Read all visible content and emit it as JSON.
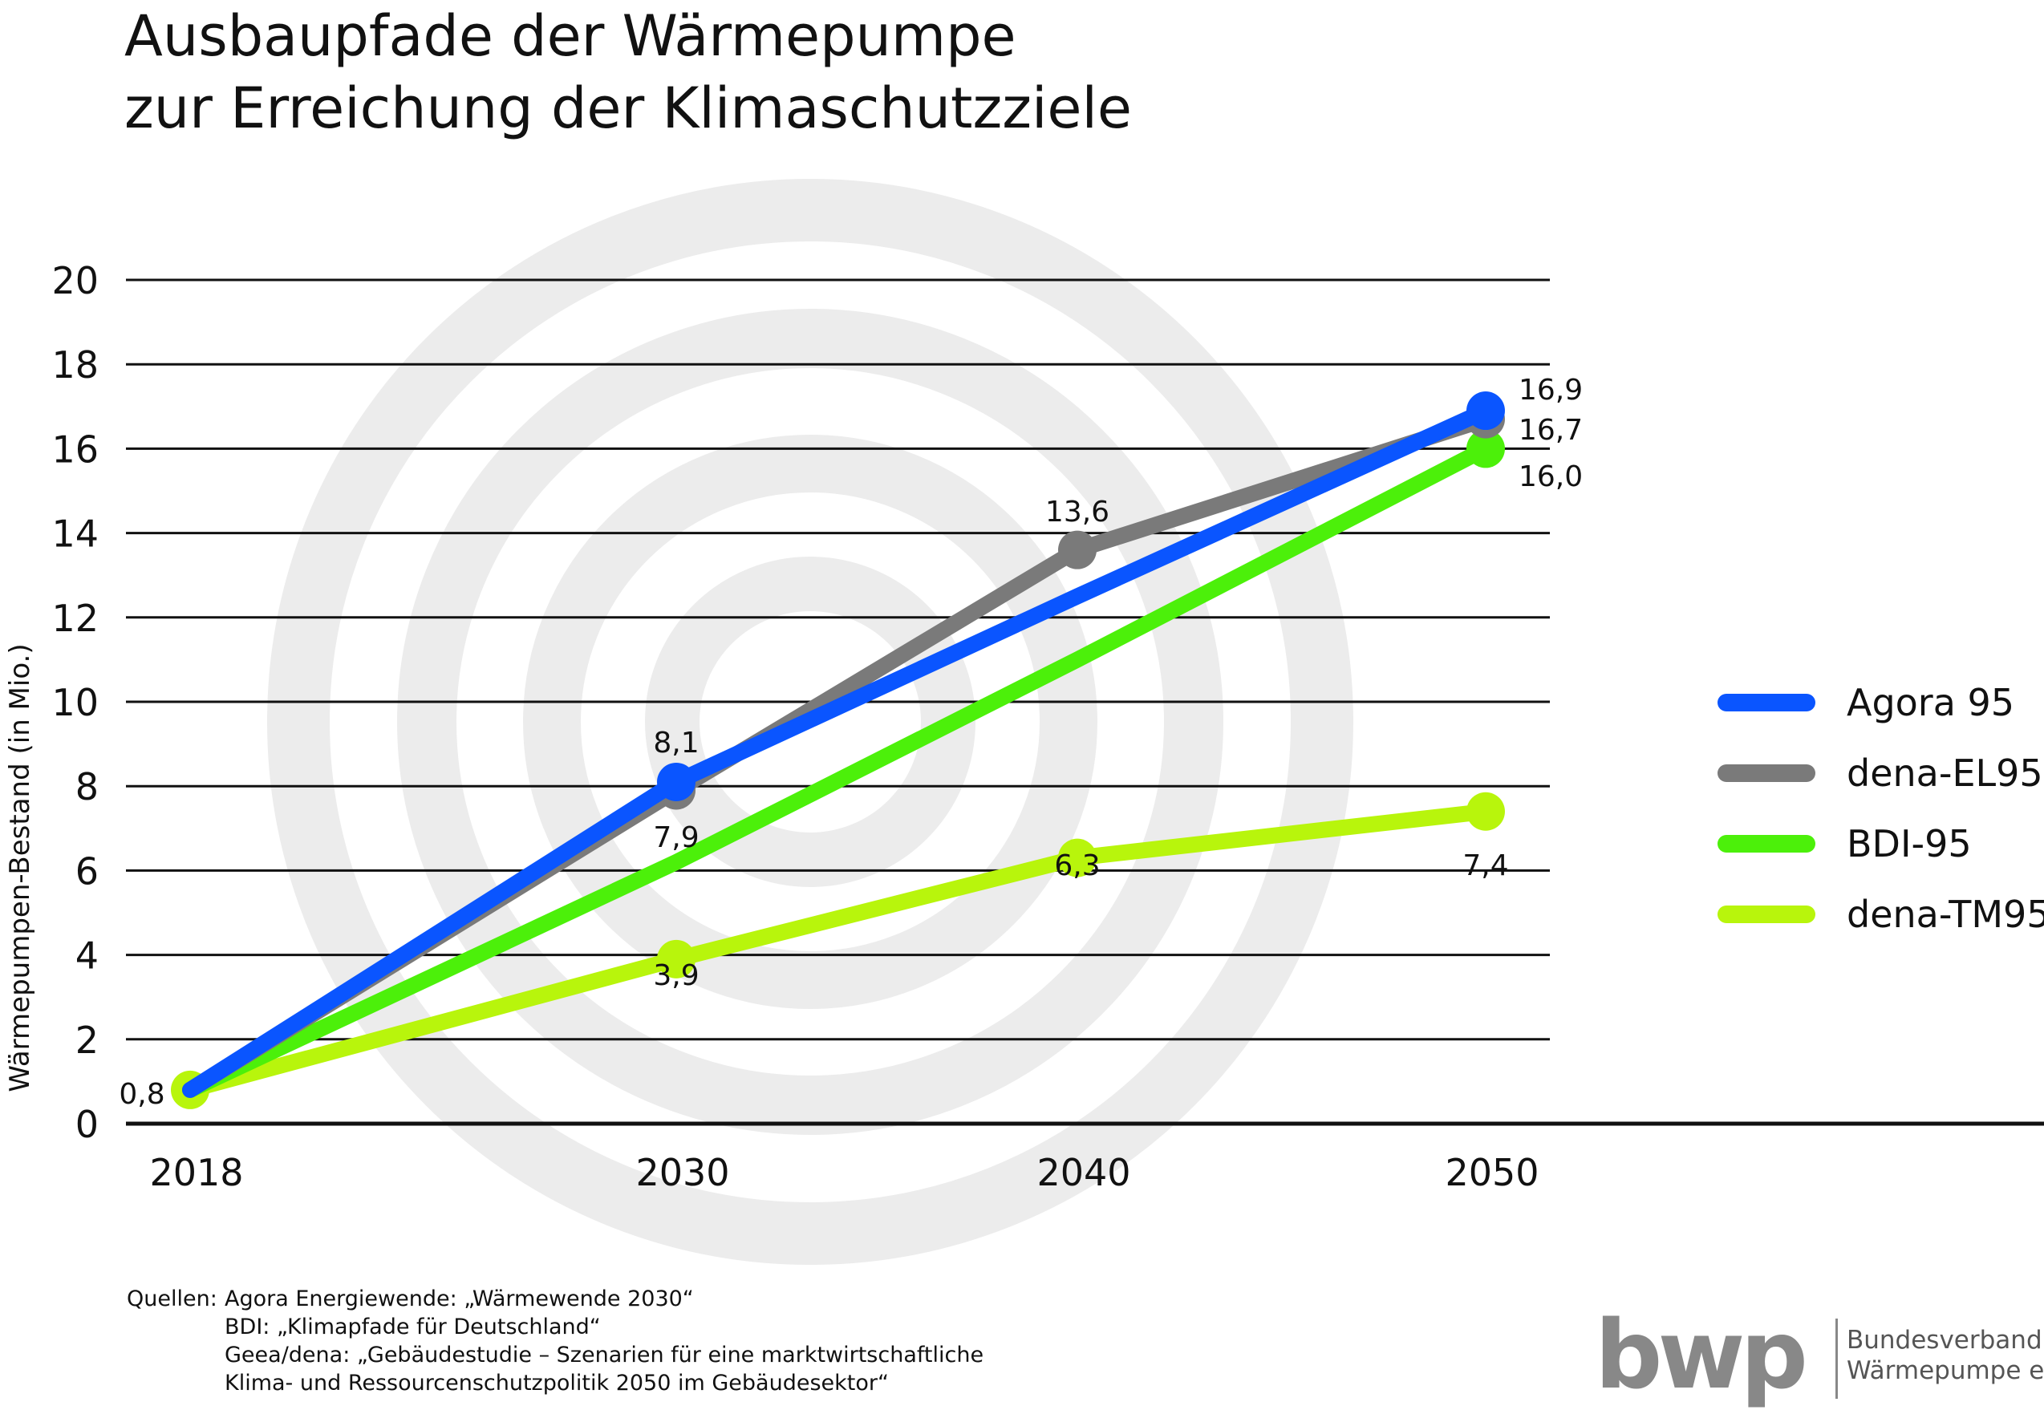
{
  "title": {
    "line1": "Ausbaupfade der Wärmepumpe",
    "line2": "zur Erreichung der Klimaschutzziele"
  },
  "chart_data": {
    "type": "line",
    "ylabel": "Wärmepumpen-Bestand (in Mio.)",
    "ylim": [
      0,
      20
    ],
    "y_ticks": [
      "0",
      "2",
      "4",
      "6",
      "8",
      "10",
      "12",
      "14",
      "16",
      "18",
      "20"
    ],
    "categories": [
      "2018",
      "2030",
      "2040",
      "2050"
    ],
    "grid": true,
    "legend_position": "right",
    "series": [
      {
        "name": "Agora 95",
        "color": "#0a55ff",
        "values": [
          0.8,
          8.1,
          12.5,
          16.9
        ],
        "labels": [
          "",
          "8,1",
          "",
          "16,9"
        ]
      },
      {
        "name": "dena-EL95",
        "color": "#7a7a7a",
        "values": [
          0.8,
          7.9,
          13.6,
          16.7
        ],
        "labels": [
          "",
          "7,9",
          "13,6",
          "16,7"
        ]
      },
      {
        "name": "BDI-95",
        "color": "#4cf00a",
        "values": [
          0.8,
          6.2,
          11.0,
          16.0
        ],
        "labels": [
          "",
          "",
          "",
          "16,0"
        ]
      },
      {
        "name": "dena-TM95",
        "color": "#b8f50c",
        "values": [
          0.8,
          3.9,
          6.3,
          7.4
        ],
        "labels": [
          "0,8",
          "3,9",
          "6,3",
          "7,4"
        ]
      }
    ]
  },
  "sources": {
    "line1_lead": "Quellen:",
    "line1": "Agora Energiewende: „Wärmewende 2030“",
    "line2": "BDI: „Klimapfade für Deutschland“",
    "line3": "Geea/dena: „Gebäudestudie – Szenarien für eine marktwirtschaftliche",
    "line4": "Klima- und Ressourcenschutzpolitik 2050 im Gebäudesektor“"
  },
  "logo": {
    "mark": "bwp",
    "line1": "Bundesverband",
    "line2": "Wärmepumpe e.V."
  }
}
